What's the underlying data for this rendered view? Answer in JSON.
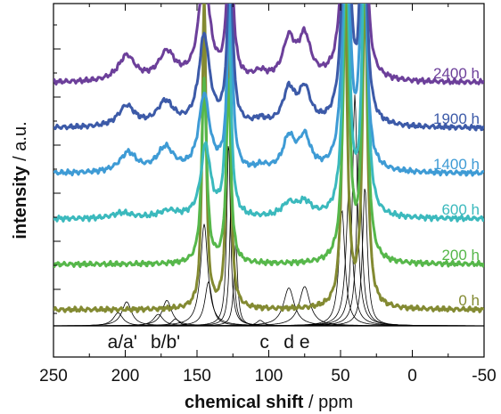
{
  "chart_data": {
    "type": "line",
    "title": "",
    "xlabel_bold": "chemical shift",
    "xlabel_rest": " / ppm",
    "ylabel_bold": "intensity",
    "ylabel_rest": " / a.u.",
    "xlim": [
      250,
      -50
    ],
    "x_reversed": true,
    "x_ticks": [
      250,
      200,
      150,
      100,
      50,
      0,
      -50
    ],
    "y_ticks_shown": false,
    "grid": false,
    "peak_labels": [
      {
        "text": "a/a'",
        "x": 202
      },
      {
        "text": "b/b'",
        "x": 172
      },
      {
        "text": "c",
        "x": 103
      },
      {
        "text": "d",
        "x": 86
      },
      {
        "text": "e",
        "x": 75
      }
    ],
    "series": [
      {
        "name": "0 h",
        "color": "#838a32",
        "offset": 0,
        "peaks": [
          {
            "x": 145,
            "h": 7,
            "w": 1.5
          },
          {
            "x": 128,
            "h": 7,
            "w": 1.5
          },
          {
            "x": 47,
            "h": 7,
            "w": 2
          },
          {
            "x": 33,
            "h": 7,
            "w": 2
          }
        ]
      },
      {
        "name": "200 h",
        "color": "#56b74a",
        "offset": 1,
        "peaks": [
          {
            "x": 145,
            "h": 4,
            "w": 2
          },
          {
            "x": 128,
            "h": 4,
            "w": 1.8
          },
          {
            "x": 46,
            "h": 7,
            "w": 2.2
          },
          {
            "x": 33,
            "h": 7,
            "w": 2
          }
        ]
      },
      {
        "name": "600 h",
        "color": "#3bb9bd",
        "offset": 2,
        "peaks": [
          {
            "x": 202,
            "h": 0.12,
            "w": 8
          },
          {
            "x": 170,
            "h": 0.15,
            "w": 8
          },
          {
            "x": 144,
            "h": 1.55,
            "w": 4
          },
          {
            "x": 128,
            "h": 5,
            "w": 1.8
          },
          {
            "x": 86,
            "h": 0.28,
            "w": 6
          },
          {
            "x": 75,
            "h": 0.3,
            "w": 6
          },
          {
            "x": 46,
            "h": 7,
            "w": 2.3
          },
          {
            "x": 33,
            "h": 7,
            "w": 2
          }
        ]
      },
      {
        "name": "1400 h",
        "color": "#3e9bd5",
        "offset": 3,
        "peaks": [
          {
            "x": 198,
            "h": 0.42,
            "w": 7
          },
          {
            "x": 172,
            "h": 0.52,
            "w": 7
          },
          {
            "x": 145,
            "h": 1.65,
            "w": 4.5
          },
          {
            "x": 127,
            "h": 4,
            "w": 2
          },
          {
            "x": 105,
            "h": 0.1,
            "w": 5
          },
          {
            "x": 86,
            "h": 0.7,
            "w": 5
          },
          {
            "x": 75,
            "h": 0.7,
            "w": 5
          },
          {
            "x": 46,
            "h": 7,
            "w": 2.5
          },
          {
            "x": 34,
            "h": 7,
            "w": 2
          }
        ]
      },
      {
        "name": "1900 h",
        "color": "#3c5aa8",
        "offset": 4,
        "peaks": [
          {
            "x": 199,
            "h": 0.45,
            "w": 7
          },
          {
            "x": 172,
            "h": 0.52,
            "w": 7
          },
          {
            "x": 145,
            "h": 1.95,
            "w": 4.5
          },
          {
            "x": 127,
            "h": 4,
            "w": 2
          },
          {
            "x": 106,
            "h": 0.12,
            "w": 5
          },
          {
            "x": 86,
            "h": 0.75,
            "w": 5
          },
          {
            "x": 75,
            "h": 0.75,
            "w": 5
          },
          {
            "x": 46,
            "h": 7,
            "w": 2.6
          },
          {
            "x": 34,
            "h": 7,
            "w": 2
          }
        ]
      },
      {
        "name": "2400 h",
        "color": "#6c3f9a",
        "offset": 5,
        "peaks": [
          {
            "x": 199,
            "h": 0.55,
            "w": 7
          },
          {
            "x": 171,
            "h": 0.6,
            "w": 7
          },
          {
            "x": 145,
            "h": 2.3,
            "w": 4.5
          },
          {
            "x": 127,
            "h": 4,
            "w": 2
          },
          {
            "x": 106,
            "h": 0.15,
            "w": 5
          },
          {
            "x": 86,
            "h": 0.85,
            "w": 5
          },
          {
            "x": 75,
            "h": 0.9,
            "w": 5
          },
          {
            "x": 46,
            "h": 7,
            "w": 2.6
          },
          {
            "x": 34,
            "h": 7,
            "w": 2
          }
        ]
      }
    ],
    "fit_components": [
      {
        "x": 205,
        "h": 0.28,
        "w": 4
      },
      {
        "x": 199,
        "h": 0.52,
        "w": 4
      },
      {
        "x": 177,
        "h": 0.25,
        "w": 4
      },
      {
        "x": 171,
        "h": 0.55,
        "w": 4
      },
      {
        "x": 165,
        "h": 0.15,
        "w": 3
      },
      {
        "x": 145,
        "h": 2.2,
        "w": 3
      },
      {
        "x": 142,
        "h": 0.95,
        "w": 3
      },
      {
        "x": 128,
        "h": 4,
        "w": 1.5
      },
      {
        "x": 126,
        "h": 3,
        "w": 1.5
      },
      {
        "x": 123,
        "h": 1.8,
        "w": 1.5
      },
      {
        "x": 106,
        "h": 0.12,
        "w": 3
      },
      {
        "x": 86,
        "h": 0.82,
        "w": 4.5
      },
      {
        "x": 75,
        "h": 0.85,
        "w": 4.5
      },
      {
        "x": 49,
        "h": 2.5,
        "w": 2.5
      },
      {
        "x": 44,
        "h": 3,
        "w": 2.5
      },
      {
        "x": 40,
        "h": 5,
        "w": 2
      },
      {
        "x": 37,
        "h": 4,
        "w": 2
      },
      {
        "x": 33,
        "h": 3,
        "w": 2
      }
    ]
  }
}
